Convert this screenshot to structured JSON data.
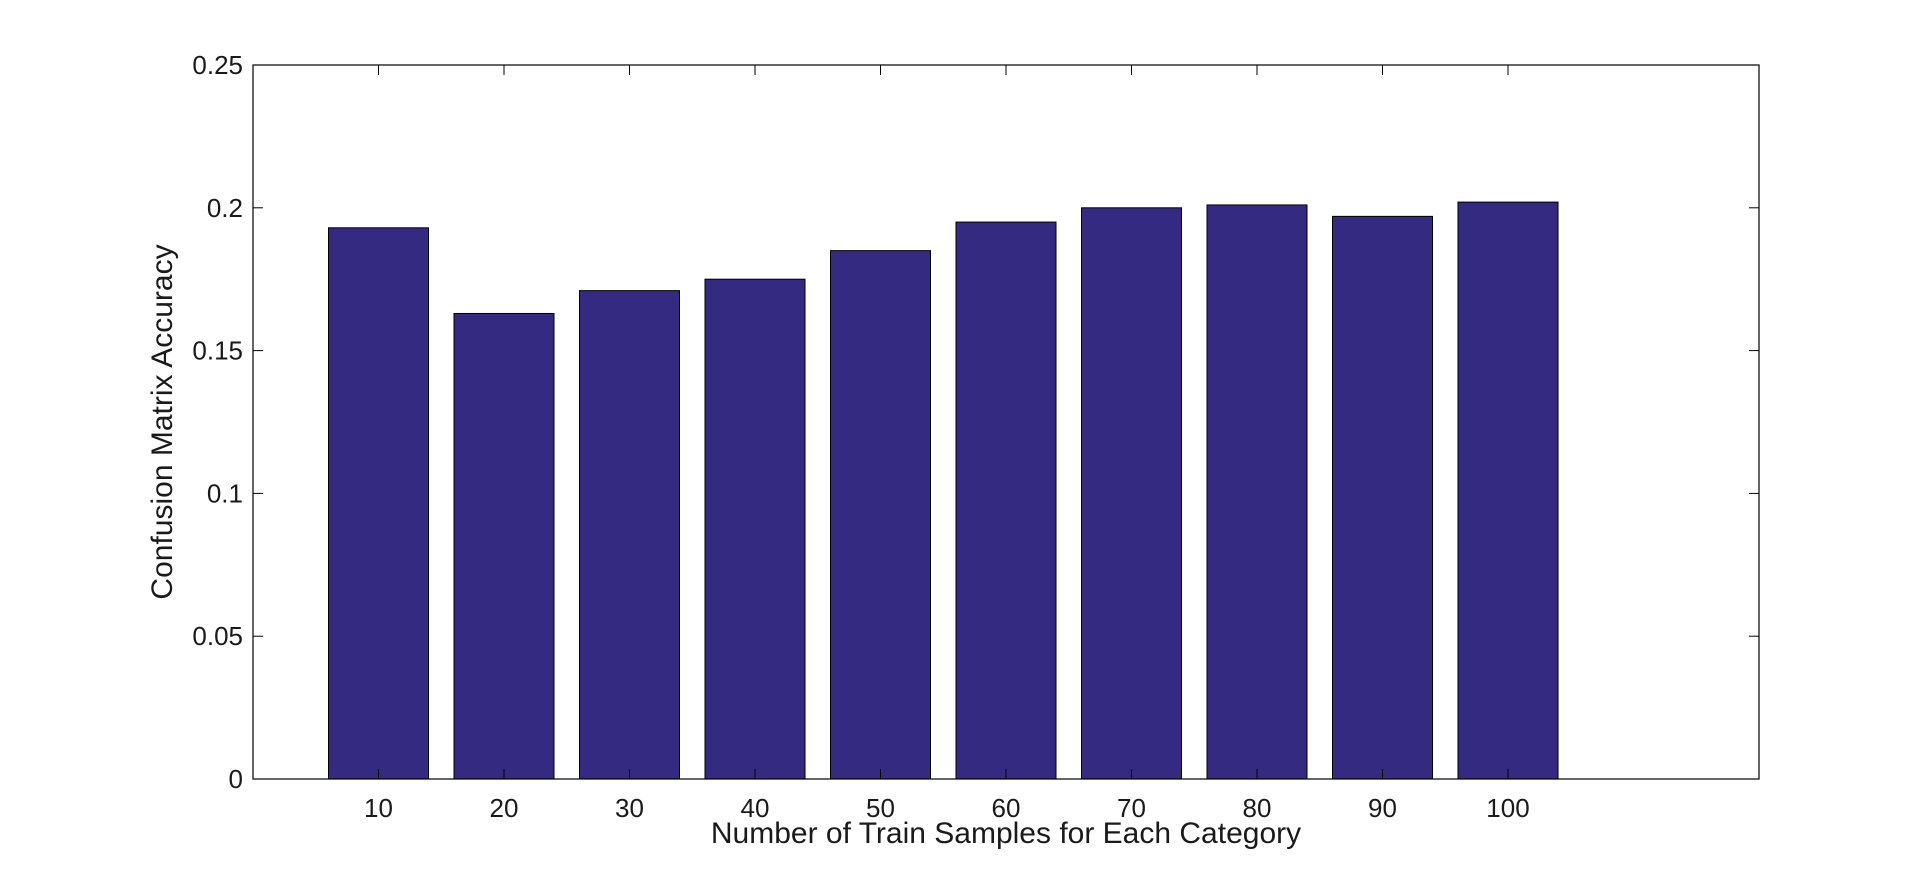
{
  "chart_data": {
    "type": "bar",
    "title": "",
    "xlabel": "Number of Train Samples for Each Category",
    "ylabel": "Confusion Matrix Accuracy",
    "categories": [
      "10",
      "20",
      "30",
      "40",
      "50",
      "60",
      "70",
      "80",
      "90",
      "100"
    ],
    "x": [
      10,
      20,
      30,
      40,
      50,
      60,
      70,
      80,
      90,
      100
    ],
    "values": [
      0.193,
      0.163,
      0.171,
      0.175,
      0.185,
      0.195,
      0.2,
      0.201,
      0.197,
      0.202
    ],
    "xlim": [
      0,
      120
    ],
    "ylim": [
      0,
      0.25
    ],
    "yticks": [
      "0",
      "0.05",
      "0.1",
      "0.15",
      "0.2",
      "0.25"
    ],
    "ytick_values": [
      0,
      0.05,
      0.1,
      0.15,
      0.2,
      0.25
    ],
    "grid": false,
    "legend": "none",
    "colors": {
      "bar_fill": "#342a82",
      "bar_edge": "#000000",
      "axes": "#000000",
      "background": "#ffffff"
    }
  }
}
